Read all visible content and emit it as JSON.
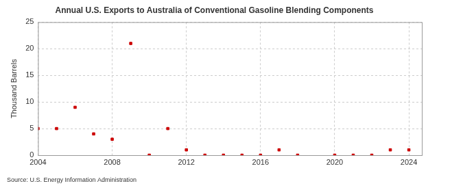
{
  "chart_data": {
    "type": "scatter",
    "title": "Annual U.S. Exports to Australia of Conventional Gasoline Blending Components",
    "y_label": "Thousand Barrels",
    "source": "Source: U.S. Energy Information Administration",
    "x": [
      2004,
      2005,
      2006,
      2007,
      2008,
      2009,
      2010,
      2011,
      2012,
      2013,
      2014,
      2015,
      2016,
      2017,
      2018,
      2019,
      2020,
      2021,
      2022,
      2023,
      2024
    ],
    "values": [
      5,
      5,
      9,
      4,
      3,
      21,
      0,
      5,
      1,
      0,
      0,
      0,
      0,
      1,
      0,
      null,
      0,
      0,
      0,
      1,
      1
    ],
    "color": "#cc0000",
    "marker": "square",
    "xlim": [
      2004,
      2024.7
    ],
    "ylim": [
      0,
      25
    ],
    "xticks": [
      2004,
      2008,
      2012,
      2016,
      2020,
      2024
    ],
    "yticks": [
      0,
      5,
      10,
      15,
      20,
      25
    ],
    "grid": true
  }
}
